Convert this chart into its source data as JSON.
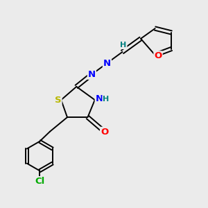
{
  "bg_color": "#ebebeb",
  "bond_color": "#000000",
  "atom_colors": {
    "S": "#b8b800",
    "N": "#0000ff",
    "O": "#ff0000",
    "Cl": "#00aa00",
    "H": "#008080",
    "C": "#000000"
  },
  "font_size": 8.5,
  "lw": 1.4
}
